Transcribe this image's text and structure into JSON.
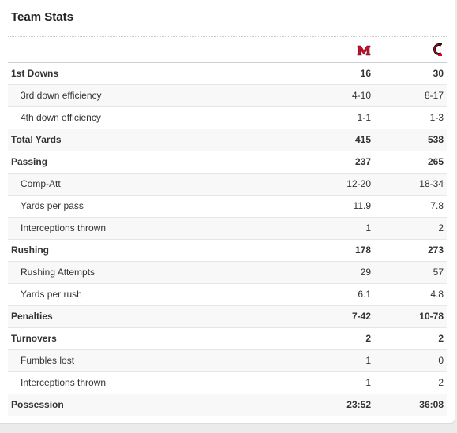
{
  "title": "Team Stats",
  "teams": [
    {
      "logo": "miami-m-logo",
      "color": "#c8102e"
    },
    {
      "logo": "cincinnati-c-logo",
      "color": "#e00122"
    }
  ],
  "rows": [
    {
      "label": "1st Downs",
      "a": "16",
      "b": "30",
      "main": true
    },
    {
      "label": "3rd down efficiency",
      "a": "4-10",
      "b": "8-17",
      "main": false
    },
    {
      "label": "4th down efficiency",
      "a": "1-1",
      "b": "1-3",
      "main": false
    },
    {
      "label": "Total Yards",
      "a": "415",
      "b": "538",
      "main": true
    },
    {
      "label": "Passing",
      "a": "237",
      "b": "265",
      "main": true
    },
    {
      "label": "Comp-Att",
      "a": "12-20",
      "b": "18-34",
      "main": false
    },
    {
      "label": "Yards per pass",
      "a": "11.9",
      "b": "7.8",
      "main": false
    },
    {
      "label": "Interceptions thrown",
      "a": "1",
      "b": "2",
      "main": false
    },
    {
      "label": "Rushing",
      "a": "178",
      "b": "273",
      "main": true
    },
    {
      "label": "Rushing Attempts",
      "a": "29",
      "b": "57",
      "main": false
    },
    {
      "label": "Yards per rush",
      "a": "6.1",
      "b": "4.8",
      "main": false
    },
    {
      "label": "Penalties",
      "a": "7-42",
      "b": "10-78",
      "main": true
    },
    {
      "label": "Turnovers",
      "a": "2",
      "b": "2",
      "main": true
    },
    {
      "label": "Fumbles lost",
      "a": "1",
      "b": "0",
      "main": false
    },
    {
      "label": "Interceptions thrown",
      "a": "1",
      "b": "2",
      "main": false
    },
    {
      "label": "Possession",
      "a": "23:52",
      "b": "36:08",
      "main": true
    }
  ]
}
